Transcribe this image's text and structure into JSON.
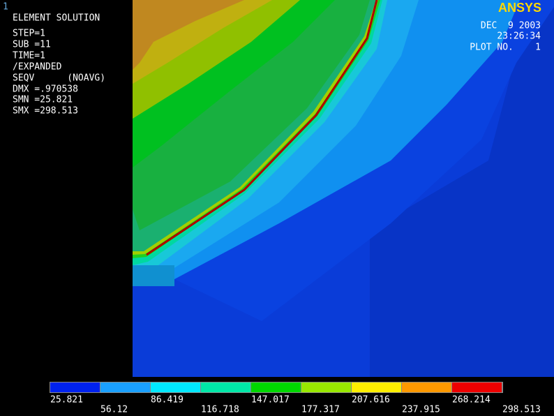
{
  "window_number": "1",
  "info": [
    "ELEMENT SOLUTION",
    "STEP=1",
    "SUB =11",
    "TIME=1",
    "/EXPANDED",
    "SEQV      (NOAVG)",
    "DMX =.970538",
    "SMN =25.821",
    "SMX =298.513"
  ],
  "logo": "ANSYS",
  "header_right": [
    "DEC  9 2003",
    "23:26:34",
    "PLOT NO.    1"
  ],
  "legend": [
    "25.821",
    "56.12",
    "86.419",
    "116.718",
    "147.017",
    "177.317",
    "207.616",
    "237.915",
    "268.214",
    "298.513"
  ]
}
